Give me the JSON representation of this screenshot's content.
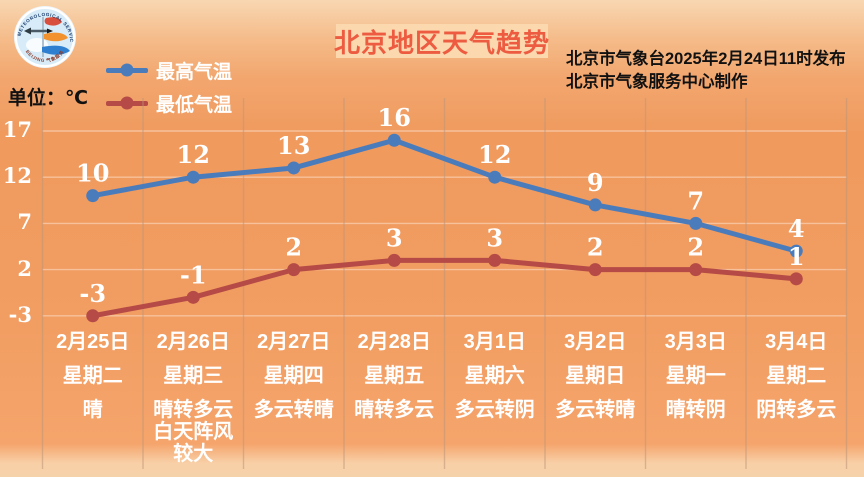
{
  "header": {
    "title": "北京地区天气趋势",
    "issue_line1": "北京市气象台2025年2月24日11时发布",
    "issue_line2": "北京市气象服务中心制作",
    "unit_label": "单位：℃",
    "logo": {
      "arc_text_top": "METEOROLOGICAL SERVICE",
      "arc_text_bottom": "BEIJING 气象服务"
    }
  },
  "legend": [
    {
      "label": "最高气温",
      "color": "#4a7cbc"
    },
    {
      "label": "最低气温",
      "color": "#b54a46"
    }
  ],
  "chart_data": {
    "type": "line",
    "title": "北京地区天气趋势",
    "ylabel": "℃",
    "y_ticks": [
      17,
      12,
      7,
      2,
      -3
    ],
    "ylim": [
      -5,
      19
    ],
    "grid": true,
    "legend_position": "top-left",
    "categories": [
      "2月25日",
      "2月26日",
      "2月27日",
      "2月28日",
      "3月1日",
      "3月2日",
      "3月3日",
      "3月4日"
    ],
    "days": [
      {
        "date": "2月25日",
        "weekday": "星期二",
        "weather": "晴"
      },
      {
        "date": "2月26日",
        "weekday": "星期三",
        "weather": "晴转多云白天阵风较大"
      },
      {
        "date": "2月27日",
        "weekday": "星期四",
        "weather": "多云转晴"
      },
      {
        "date": "2月28日",
        "weekday": "星期五",
        "weather": "晴转多云"
      },
      {
        "date": "3月1日",
        "weekday": "星期六",
        "weather": "多云转阴"
      },
      {
        "date": "3月2日",
        "weekday": "星期日",
        "weather": "多云转晴"
      },
      {
        "date": "3月3日",
        "weekday": "星期一",
        "weather": "晴转阴"
      },
      {
        "date": "3月4日",
        "weekday": "星期二",
        "weather": "阴转多云"
      }
    ],
    "series": [
      {
        "name": "最高气温",
        "color": "#4a7cbc",
        "values": [
          10,
          12,
          13,
          16,
          12,
          9,
          7,
          4
        ]
      },
      {
        "name": "最低气温",
        "color": "#b54a46",
        "values": [
          -3,
          -1,
          2,
          3,
          3,
          2,
          2,
          1
        ]
      }
    ]
  },
  "colors": {
    "background_top": "#f8d7b2",
    "background_main": "#f09a5e",
    "title_text": "#ed5b41",
    "title_badge": "#fbd8ae",
    "high_line": "#4a7cbc",
    "low_line": "#b54a46",
    "grid_horizontal": "rgba(255,240,228,0.45)",
    "grid_vertical": "rgba(190,150,120,0.55)",
    "label_text": "#ffffff",
    "info_text": "#111111"
  }
}
